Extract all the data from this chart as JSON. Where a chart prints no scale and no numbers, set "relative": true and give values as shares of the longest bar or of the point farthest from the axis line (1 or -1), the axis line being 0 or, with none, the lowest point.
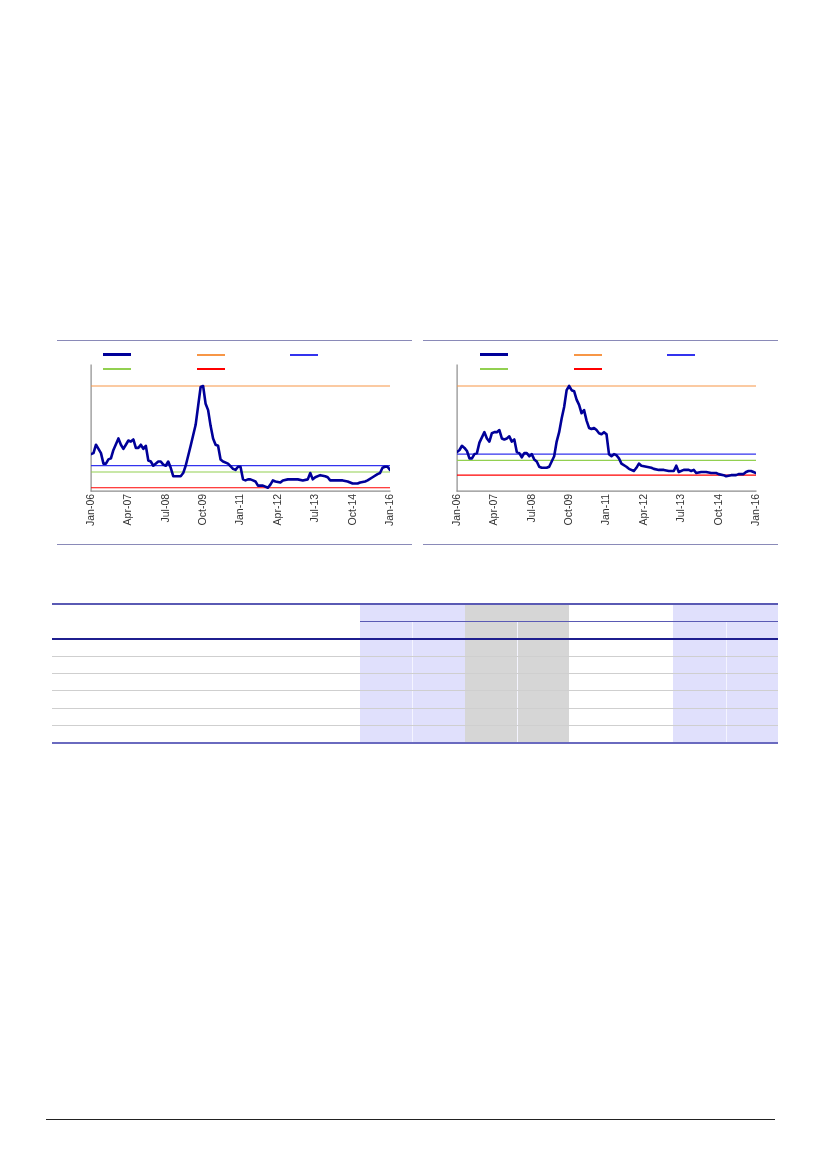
{
  "chart_data": [
    {
      "type": "line",
      "relative": true,
      "x": [
        "2006-01",
        "2006-02",
        "2006-03",
        "2006-04",
        "2006-05",
        "2006-06",
        "2006-07",
        "2006-08",
        "2006-09",
        "2006-10",
        "2006-12",
        "2007-01",
        "2007-02",
        "2007-03",
        "2007-04",
        "2007-05",
        "2007-06",
        "2007-07",
        "2007-08",
        "2007-09",
        "2007-10",
        "2007-11",
        "2007-12",
        "2008-01",
        "2008-02",
        "2008-04",
        "2008-05",
        "2008-06",
        "2008-07",
        "2008-08",
        "2008-09",
        "2008-10",
        "2008-11",
        "2008-12",
        "2009-01",
        "2009-02",
        "2009-03",
        "2009-05",
        "2009-06",
        "2009-07",
        "2009-08",
        "2009-09",
        "2009-10",
        "2009-11",
        "2009-12",
        "2010-01",
        "2010-02",
        "2010-03",
        "2010-04",
        "2010-05",
        "2010-06",
        "2010-08",
        "2010-10",
        "2010-11",
        "2010-12",
        "2011-01",
        "2011-02",
        "2011-03",
        "2011-04",
        "2011-05",
        "2011-06",
        "2011-07",
        "2011-08",
        "2011-10",
        "2011-12",
        "2012-01",
        "2012-02",
        "2012-03",
        "2012-05",
        "2012-06",
        "2012-08",
        "2012-10",
        "2012-12",
        "2013-02",
        "2013-04",
        "2013-05",
        "2013-06",
        "2013-07",
        "2013-09",
        "2013-11",
        "2013-12",
        "2014-01",
        "2014-02",
        "2014-04",
        "2014-06",
        "2014-08",
        "2014-10",
        "2014-12",
        "2015-01",
        "2015-03",
        "2015-04",
        "2015-06",
        "2015-08",
        "2015-09",
        "2015-10",
        "2015-11",
        "2015-12",
        "2016-01"
      ],
      "series": [
        {
          "color": "#000099",
          "values": [
            0.35,
            0.36,
            0.44,
            0.4,
            0.36,
            0.26,
            0.26,
            0.3,
            0.31,
            0.39,
            0.5,
            0.44,
            0.4,
            0.44,
            0.48,
            0.47,
            0.49,
            0.41,
            0.41,
            0.44,
            0.4,
            0.43,
            0.29,
            0.28,
            0.24,
            0.28,
            0.28,
            0.25,
            0.24,
            0.28,
            0.22,
            0.14,
            0.14,
            0.14,
            0.14,
            0.17,
            0.24,
            0.43,
            0.53,
            0.63,
            0.81,
            0.99,
            1,
            0.83,
            0.77,
            0.62,
            0.5,
            0.44,
            0.43,
            0.3,
            0.28,
            0.26,
            0.21,
            0.2,
            0.23,
            0.23,
            0.11,
            0.1,
            0.11,
            0.11,
            0.1,
            0.09,
            0.05,
            0.05,
            0.03,
            0.06,
            0.1,
            0.09,
            0.08,
            0.1,
            0.11,
            0.11,
            0.11,
            0.1,
            0.11,
            0.17,
            0.11,
            0.13,
            0.15,
            0.14,
            0.13,
            0.1,
            0.1,
            0.1,
            0.1,
            0.09,
            0.07,
            0.07,
            0.08,
            0.09,
            0.1,
            0.13,
            0.16,
            0.17,
            0.22,
            0.23,
            0.23,
            0.2
          ]
        }
      ],
      "xlim": [
        "2006-01",
        "2016-01"
      ],
      "xticks": [
        {
          "value": "2006-01",
          "label": "Jan-06"
        },
        {
          "value": "2007-04",
          "label": "Apr-07"
        },
        {
          "value": "2008-07",
          "label": "Jul-08"
        },
        {
          "value": "2009-10",
          "label": "Oct-09"
        },
        {
          "value": "2011-01",
          "label": "Jan-11"
        },
        {
          "value": "2012-04",
          "label": "Apr-12"
        },
        {
          "value": "2013-07",
          "label": "Jul-13"
        },
        {
          "value": "2014-10",
          "label": "Oct-14"
        },
        {
          "value": "2016-01",
          "label": "Jan-16"
        }
      ],
      "ref_lines": [
        {
          "axis": "y",
          "value": 1,
          "color": "#f79646"
        },
        {
          "axis": "y",
          "value": 0.24,
          "color": "#3333ee"
        },
        {
          "axis": "y",
          "value": 0.18,
          "color": "#92d050"
        },
        {
          "axis": "y",
          "value": 0.03,
          "color": "#ff0000"
        }
      ]
    },
    {
      "type": "line",
      "relative": true,
      "x": [
        "2006-01",
        "2006-02",
        "2006-03",
        "2006-04",
        "2006-05",
        "2006-06",
        "2006-07",
        "2006-08",
        "2006-09",
        "2006-10",
        "2006-12",
        "2007-01",
        "2007-02",
        "2007-03",
        "2007-04",
        "2007-05",
        "2007-06",
        "2007-07",
        "2007-08",
        "2007-09",
        "2007-10",
        "2007-11",
        "2007-12",
        "2008-01",
        "2008-02",
        "2008-03",
        "2008-04",
        "2008-05",
        "2008-06",
        "2008-07",
        "2008-08",
        "2008-09",
        "2008-10",
        "2008-11",
        "2008-12",
        "2009-01",
        "2009-02",
        "2009-03",
        "2009-04",
        "2009-05",
        "2009-06",
        "2009-07",
        "2009-08",
        "2009-09",
        "2009-10",
        "2009-11",
        "2009-12",
        "2010-01",
        "2010-02",
        "2010-03",
        "2010-04",
        "2010-05",
        "2010-06",
        "2010-07",
        "2010-08",
        "2010-09",
        "2010-10",
        "2010-11",
        "2010-12",
        "2011-01",
        "2011-02",
        "2011-03",
        "2011-04",
        "2011-05",
        "2011-06",
        "2011-07",
        "2011-09",
        "2011-10",
        "2011-12",
        "2012-01",
        "2012-02",
        "2012-03",
        "2012-05",
        "2012-07",
        "2012-08",
        "2012-10",
        "2012-12",
        "2013-02",
        "2013-04",
        "2013-05",
        "2013-06",
        "2013-08",
        "2013-10",
        "2013-11",
        "2013-12",
        "2014-01",
        "2014-03",
        "2014-05",
        "2014-07",
        "2014-09",
        "2014-10",
        "2014-12",
        "2015-01",
        "2015-03",
        "2015-05",
        "2015-06",
        "2015-08",
        "2015-09",
        "2015-10",
        "2015-11",
        "2015-12",
        "2016-01"
      ],
      "series": [
        {
          "color": "#000099",
          "values": [
            0.37,
            0.39,
            0.43,
            0.41,
            0.38,
            0.31,
            0.31,
            0.35,
            0.36,
            0.46,
            0.56,
            0.5,
            0.47,
            0.55,
            0.56,
            0.56,
            0.58,
            0.5,
            0.49,
            0.5,
            0.52,
            0.47,
            0.49,
            0.37,
            0.36,
            0.32,
            0.36,
            0.36,
            0.33,
            0.35,
            0.3,
            0.28,
            0.23,
            0.22,
            0.22,
            0.22,
            0.23,
            0.28,
            0.33,
            0.47,
            0.56,
            0.69,
            0.8,
            0.96,
            1,
            0.96,
            0.95,
            0.87,
            0.82,
            0.74,
            0.77,
            0.67,
            0.6,
            0.59,
            0.6,
            0.58,
            0.55,
            0.54,
            0.56,
            0.54,
            0.35,
            0.33,
            0.35,
            0.34,
            0.31,
            0.26,
            0.23,
            0.21,
            0.19,
            0.22,
            0.26,
            0.24,
            0.23,
            0.22,
            0.21,
            0.2,
            0.2,
            0.19,
            0.19,
            0.24,
            0.18,
            0.2,
            0.2,
            0.19,
            0.2,
            0.17,
            0.18,
            0.18,
            0.17,
            0.17,
            0.16,
            0.15,
            0.14,
            0.15,
            0.15,
            0.16,
            0.16,
            0.18,
            0.19,
            0.19,
            0.18,
            0.17
          ]
        }
      ],
      "xlim": [
        "2006-01",
        "2016-01"
      ],
      "xticks": [
        {
          "value": "2006-01",
          "label": "Jan-06"
        },
        {
          "value": "2007-04",
          "label": "Apr-07"
        },
        {
          "value": "2008-07",
          "label": "Jul-08"
        },
        {
          "value": "2009-10",
          "label": "Oct-09"
        },
        {
          "value": "2011-01",
          "label": "Jan-11"
        },
        {
          "value": "2012-04",
          "label": "Apr-12"
        },
        {
          "value": "2013-07",
          "label": "Jul-13"
        },
        {
          "value": "2014-10",
          "label": "Oct-14"
        },
        {
          "value": "2016-01",
          "label": "Jan-16"
        }
      ],
      "ref_lines": [
        {
          "axis": "y",
          "value": 1,
          "color": "#f79646"
        },
        {
          "axis": "y",
          "value": 0.35,
          "color": "#3333ee"
        },
        {
          "axis": "y",
          "value": 0.29,
          "color": "#92d050"
        },
        {
          "axis": "y",
          "value": 0.15,
          "color": "#ff0000"
        }
      ]
    }
  ]
}
